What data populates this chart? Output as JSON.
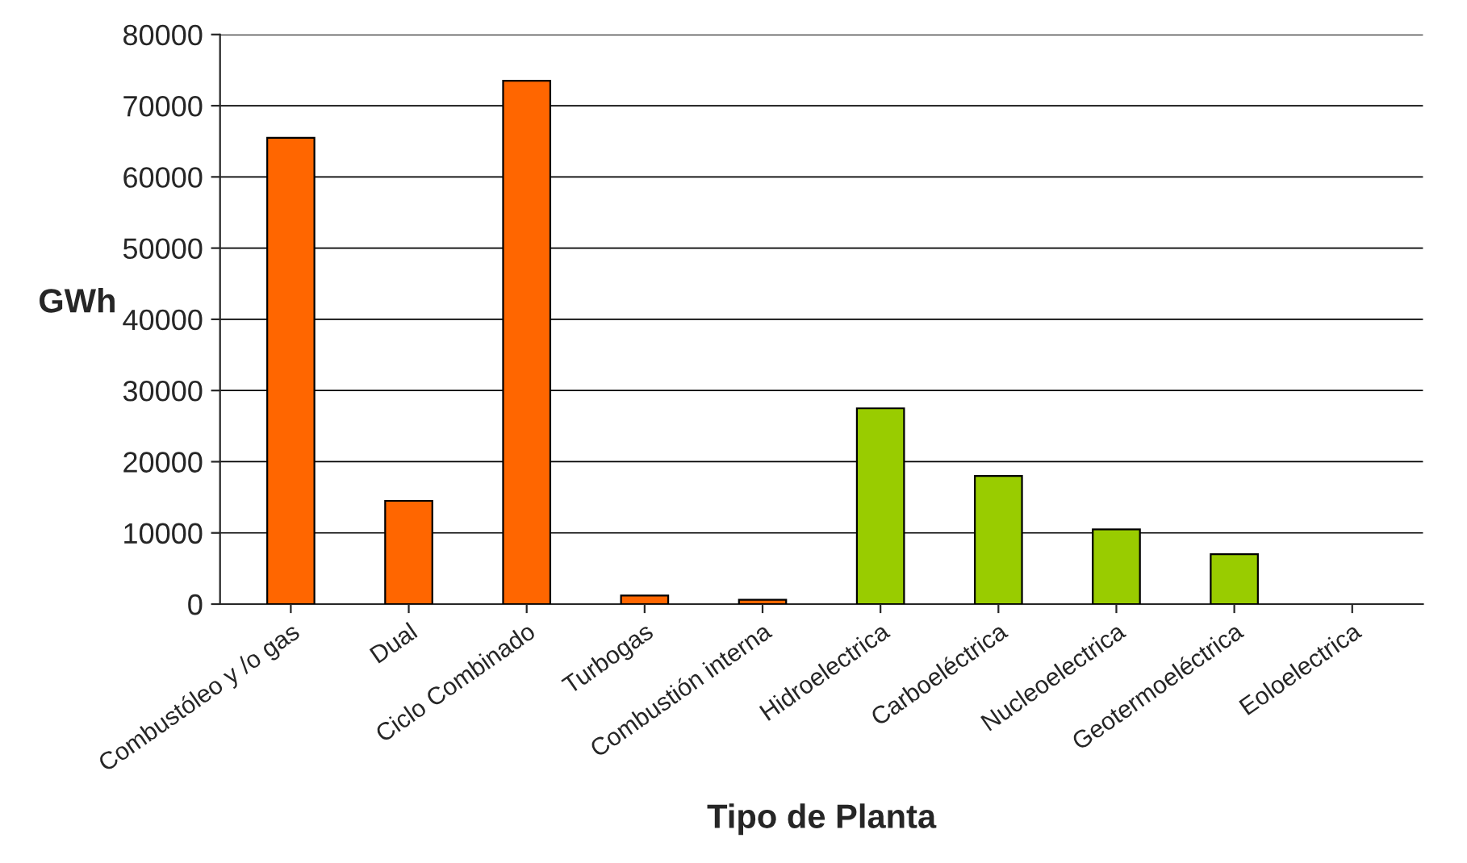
{
  "chart_data": {
    "type": "bar",
    "xlabel": "Tipo de Planta",
    "ylabel": "GWh",
    "categories": [
      "Combustóleo y /o gas",
      "Dual",
      "Ciclo Combinado",
      "Turbogas",
      "Combustión interna",
      "Hidroelectrica",
      "Carboeléctrica",
      "Nucleoelectrica",
      "Geotermoeléctrica",
      "Eoloelectrica"
    ],
    "values": [
      65500,
      14500,
      73500,
      1200,
      600,
      27500,
      18000,
      10500,
      7000,
      null
    ],
    "colors": [
      "#ff6600",
      "#ff6600",
      "#ff6600",
      "#ff6600",
      "#ff6600",
      "#99cc00",
      "#99cc00",
      "#99cc00",
      "#99cc00",
      "#99cc00"
    ],
    "ylim": [
      0,
      80000
    ],
    "yticks": [
      0,
      10000,
      20000,
      30000,
      40000,
      50000,
      60000,
      70000,
      80000
    ],
    "grid": "y",
    "legend": false
  }
}
